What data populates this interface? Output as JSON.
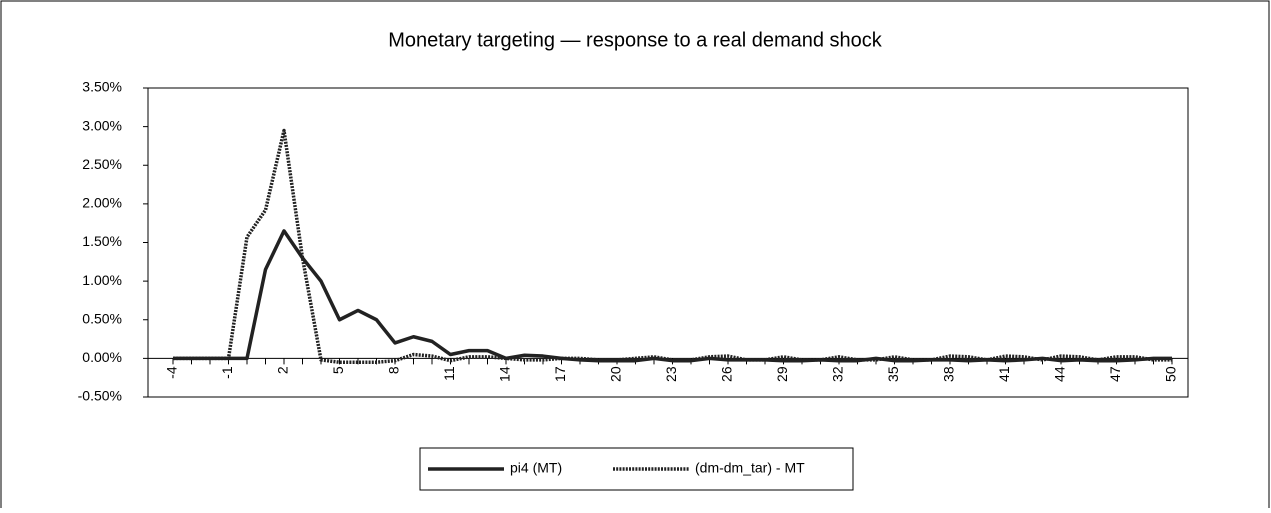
{
  "chart_data": {
    "type": "line",
    "title": "Monetary targeting — response to a real demand shock",
    "categories": [
      -4,
      null,
      null,
      -1,
      null,
      null,
      2,
      null,
      null,
      5,
      null,
      null,
      8,
      null,
      null,
      11,
      null,
      null,
      14,
      null,
      null,
      17,
      null,
      null,
      20,
      null,
      null,
      23,
      null,
      null,
      26,
      null,
      null,
      29,
      null,
      null,
      32,
      null,
      null,
      35,
      null,
      null,
      38,
      null,
      null,
      41,
      null,
      null,
      44,
      null,
      null,
      47,
      null,
      null,
      50
    ],
    "series": [
      {
        "name": "pi4 (MT)",
        "color": "#222222",
        "style": "solid",
        "values": [
          0,
          0,
          0,
          0,
          0,
          1.15,
          1.65,
          1.3,
          1.0,
          0.5,
          0.62,
          0.5,
          0.2,
          0.28,
          0.22,
          0.05,
          0.1,
          0.1,
          0,
          0.04,
          0.03,
          0,
          -0.02,
          -0.03,
          -0.03,
          -0.03,
          0,
          -0.03,
          -0.03,
          0,
          -0.02,
          -0.02,
          -0.02,
          -0.03,
          -0.03,
          -0.02,
          -0.03,
          -0.03,
          0,
          -0.03,
          -0.03,
          -0.02,
          -0.02,
          -0.03,
          -0.02,
          -0.03,
          -0.02,
          0,
          -0.03,
          -0.02,
          -0.03,
          -0.03,
          -0.02,
          0,
          0
        ]
      },
      {
        "name": "(dm-dm_tar) - MT",
        "color": "#222222",
        "style": "dotted",
        "values": [
          0,
          0,
          0,
          0,
          1.57,
          1.92,
          2.95,
          1.3,
          -0.02,
          -0.05,
          -0.05,
          -0.05,
          -0.03,
          0.05,
          0.03,
          -0.03,
          0.02,
          0.02,
          0,
          -0.02,
          -0.02,
          0,
          0,
          -0.02,
          -0.02,
          0,
          0.02,
          -0.02,
          -0.02,
          0.02,
          0.03,
          -0.02,
          -0.02,
          0.02,
          -0.02,
          -0.02,
          0.02,
          -0.02,
          -0.02,
          0.02,
          -0.02,
          -0.02,
          0.03,
          0.02,
          -0.02,
          0.03,
          0.02,
          -0.02,
          0.03,
          0.02,
          -0.02,
          0.02,
          0.02,
          -0.02,
          -0.02
        ]
      }
    ],
    "ylim": [
      -0.5,
      3.5
    ],
    "yticks": [
      {
        "value": -0.5,
        "label": "-0.50%"
      },
      {
        "value": 0,
        "label": "0.00%"
      },
      {
        "value": 0.5,
        "label": "0.50%"
      },
      {
        "value": 1,
        "label": "1.00%"
      },
      {
        "value": 1.5,
        "label": "1.50%"
      },
      {
        "value": 2,
        "label": "2.00%"
      },
      {
        "value": 2.5,
        "label": "2.50%"
      },
      {
        "value": 3,
        "label": "3.00%"
      },
      {
        "value": 3.5,
        "label": "3.50%"
      }
    ],
    "grid": false,
    "legend": "bottom"
  }
}
